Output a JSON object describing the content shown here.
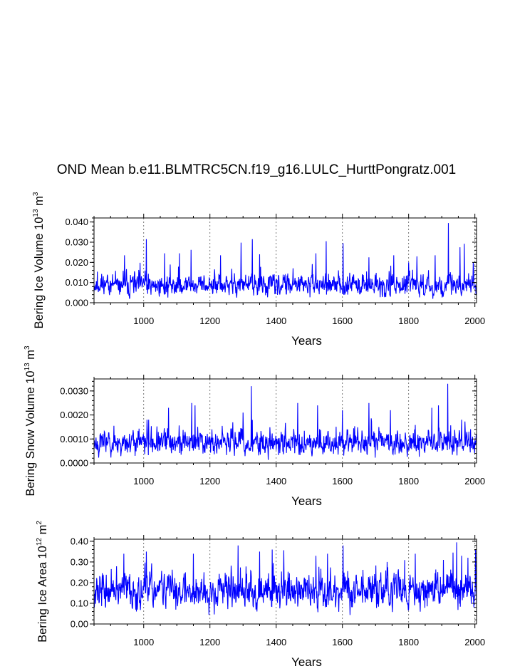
{
  "title": "OND Mean b.e11.BLMTRC5CN.f19_g16.LULC_HurttPongratz.001",
  "chart_data": [
    {
      "type": "line",
      "name": "ice-volume",
      "title": "OND Mean b.e11.BLMTRC5CN.f19_g16.LULC_HurttPongratz.001",
      "xlabel": "Years",
      "ylabel": {
        "main": "Bering Ice Volume 10",
        "exp": "13",
        "unit": " m",
        "unit_exp": "3"
      },
      "xlim": [
        850,
        2005
      ],
      "ylim": [
        0,
        0.042
      ],
      "xticks": [
        1000,
        1200,
        1400,
        1600,
        1800,
        2000
      ],
      "xtick_labels": [
        "1000",
        "1200",
        "1400",
        "1600",
        "1800",
        "2000"
      ],
      "yticks": [
        0,
        0.01,
        0.02,
        0.03,
        0.04
      ],
      "ytick_labels": [
        "0.000",
        "0.010",
        "0.020",
        "0.030",
        "0.040"
      ],
      "grid": "vertical dashed",
      "color": "#0000ff",
      "series": {
        "start": 850,
        "step": 1,
        "base": 0.0085,
        "noise": 0.0035,
        "min": 0.0015,
        "seed": 11,
        "peaks": [
          [
            1008,
            0.0315
          ],
          [
            1328,
            0.0315
          ],
          [
            1294,
            0.0298
          ],
          [
            1551,
            0.0305
          ],
          [
            1602,
            0.0295
          ],
          [
            1920,
            0.0395
          ],
          [
            1968,
            0.0292
          ],
          [
            1143,
            0.0262
          ],
          [
            1520,
            0.0245
          ],
          [
            1955,
            0.0275
          ],
          [
            942,
            0.0235
          ],
          [
            1063,
            0.0245
          ],
          [
            1108,
            0.0245
          ],
          [
            1232,
            0.0235
          ],
          [
            1350,
            0.024
          ],
          [
            1680,
            0.0225
          ],
          [
            1755,
            0.0235
          ],
          [
            1825,
            0.023
          ],
          [
            1880,
            0.0235
          ],
          [
            1995,
            0.02
          ]
        ]
      }
    },
    {
      "type": "line",
      "name": "snow-volume",
      "xlabel": "Years",
      "ylabel": {
        "main": "Bering Snow Volume 10",
        "exp": "13",
        "unit": " m",
        "unit_exp": "3"
      },
      "xlim": [
        850,
        2005
      ],
      "ylim": [
        0,
        0.0035
      ],
      "xticks": [
        1000,
        1200,
        1400,
        1600,
        1800,
        2000
      ],
      "xtick_labels": [
        "1000",
        "1200",
        "1400",
        "1600",
        "1800",
        "2000"
      ],
      "yticks": [
        0,
        0.001,
        0.002,
        0.003
      ],
      "ytick_labels": [
        "0.0000",
        "0.0010",
        "0.0020",
        "0.0030"
      ],
      "grid": "vertical dashed",
      "color": "#0000ff",
      "series": {
        "start": 850,
        "step": 1,
        "base": 0.00085,
        "noise": 0.00035,
        "min": 0.0001,
        "seed": 23,
        "peaks": [
          [
            1325,
            0.0032
          ],
          [
            1918,
            0.0033
          ],
          [
            1075,
            0.0023
          ],
          [
            1145,
            0.0025
          ],
          [
            1155,
            0.0024
          ],
          [
            1300,
            0.0021
          ],
          [
            1465,
            0.0025
          ],
          [
            1525,
            0.0024
          ],
          [
            1600,
            0.0022
          ],
          [
            1680,
            0.0025
          ],
          [
            1745,
            0.0022
          ],
          [
            1870,
            0.0023
          ],
          [
            1890,
            0.0024
          ],
          [
            1960,
            0.0018
          ],
          [
            1010,
            0.0018
          ]
        ]
      }
    },
    {
      "type": "line",
      "name": "ice-area",
      "xlabel": "Years",
      "ylabel": {
        "main": "Bering Ice Area 10",
        "exp": "12",
        "unit": " m",
        "unit_exp": "2"
      },
      "xlim": [
        850,
        2005
      ],
      "ylim": [
        0,
        0.41
      ],
      "xticks": [
        1000,
        1200,
        1400,
        1600,
        1800,
        2000
      ],
      "xtick_labels": [
        "1000",
        "1200",
        "1400",
        "1600",
        "1800",
        "2000"
      ],
      "yticks": [
        0,
        0.1,
        0.2,
        0.3,
        0.4
      ],
      "ytick_labels": [
        "0.00",
        "0.10",
        "0.20",
        "0.30",
        "0.40"
      ],
      "grid": "vertical dashed",
      "color": "#0000ff",
      "series": {
        "start": 850,
        "step": 1,
        "base": 0.16,
        "noise": 0.055,
        "min": 0.02,
        "seed": 37,
        "peaks": [
          [
            1285,
            0.38
          ],
          [
            1350,
            0.35
          ],
          [
            1388,
            0.36
          ],
          [
            1602,
            0.38
          ],
          [
            1945,
            0.395
          ],
          [
            1008,
            0.35
          ],
          [
            940,
            0.34
          ],
          [
            1150,
            0.34
          ],
          [
            1520,
            0.33
          ],
          [
            1555,
            0.34
          ],
          [
            1820,
            0.34
          ],
          [
            1960,
            0.33
          ],
          [
            1735,
            0.3
          ],
          [
            1905,
            0.31
          ]
        ]
      }
    }
  ]
}
